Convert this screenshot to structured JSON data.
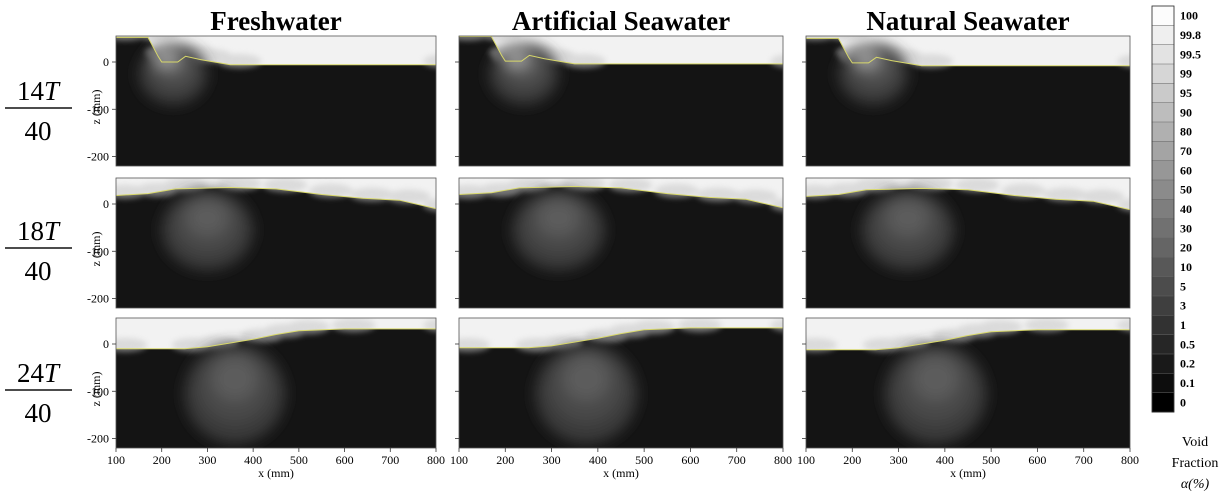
{
  "chart_data": {
    "type": "heatmap",
    "columns": [
      "Freshwater",
      "Artificial Seawater",
      "Natural Seawater"
    ],
    "rows": [
      {
        "num": "14",
        "var": "T",
        "den": "40"
      },
      {
        "num": "18",
        "var": "T",
        "den": "40"
      },
      {
        "num": "24",
        "var": "T",
        "den": "40"
      }
    ],
    "xlabel": "x (mm)",
    "ylabel": "z (mm)",
    "xticks": [
      "100",
      "200",
      "300",
      "400",
      "500",
      "600",
      "700",
      "800"
    ],
    "yticks": [
      "0",
      "-100",
      "-200"
    ],
    "xlim": [
      100,
      800
    ],
    "ylim": [
      -220,
      55
    ],
    "colorbar": {
      "levels": [
        "100",
        "99.8",
        "99.5",
        "99",
        "95",
        "90",
        "80",
        "70",
        "60",
        "50",
        "40",
        "30",
        "20",
        "10",
        "5",
        "3",
        "1",
        "0.5",
        "0.2",
        "0.1",
        "0"
      ],
      "title_line1": "Void",
      "title_line2": "Fraction",
      "title_line3": "α(%)"
    },
    "surface_profiles": [
      [
        [
          100,
          52
        ],
        [
          170,
          52
        ],
        [
          192,
          12
        ],
        [
          200,
          0
        ],
        [
          235,
          0
        ],
        [
          252,
          12
        ],
        [
          285,
          5
        ],
        [
          350,
          -6
        ],
        [
          800,
          -6
        ]
      ],
      [
        [
          100,
          18
        ],
        [
          170,
          22
        ],
        [
          230,
          32
        ],
        [
          350,
          35
        ],
        [
          450,
          32
        ],
        [
          550,
          20
        ],
        [
          640,
          12
        ],
        [
          720,
          8
        ],
        [
          800,
          -10
        ]
      ],
      [
        [
          100,
          -10
        ],
        [
          250,
          -10
        ],
        [
          300,
          -6
        ],
        [
          400,
          10
        ],
        [
          450,
          20
        ],
        [
          500,
          28
        ],
        [
          600,
          32
        ],
        [
          800,
          32
        ]
      ]
    ],
    "plume_cores": [
      {
        "x": 225,
        "z": -25,
        "rx": 75,
        "rz": 65
      },
      {
        "x": 300,
        "z": -55,
        "rx": 100,
        "rz": 85
      },
      {
        "x": 360,
        "z": -105,
        "rx": 110,
        "rz": 105
      }
    ]
  }
}
